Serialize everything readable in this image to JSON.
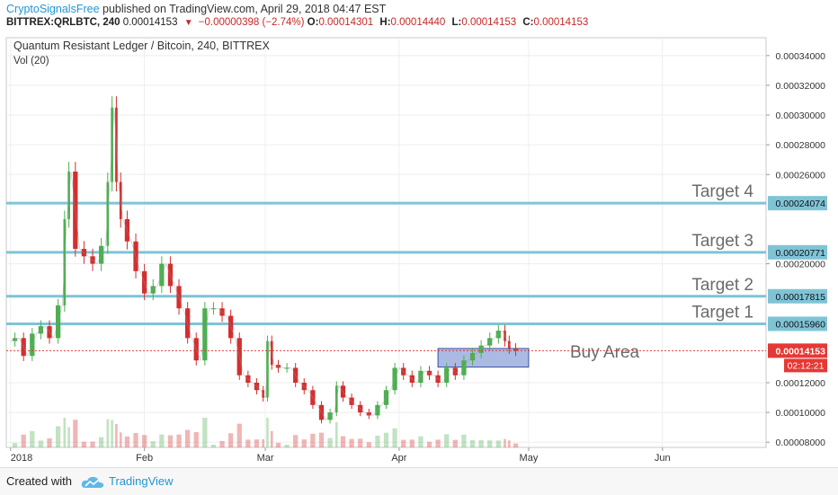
{
  "header": {
    "author": "CryptoSignalsFree",
    "published": "published on TradingView.com, April 29, 2018 04:47 EST",
    "symbol": "BITTREX:QRLBTC, 240",
    "last": "0.00014153",
    "change": "−0.00000398 (−2.74%)",
    "o_label": "O:",
    "o_value": "0.00014301",
    "h_label": "H:",
    "h_value": "0.00014440",
    "l_label": "L:",
    "l_value": "0.00014153",
    "c_label": "C:",
    "c_value": "0.00014153"
  },
  "colors": {
    "up": "#4caf50",
    "down": "#d32f2f",
    "level_line": "#7fc4d6",
    "buy_box": "#8fa3d9",
    "price_tag": "#e53935",
    "axis_text": "#333333"
  },
  "footer": {
    "created_with": "Created with",
    "brand": "TradingView"
  },
  "chart_data": {
    "type": "candlestick",
    "title": "Quantum Resistant Ledger / Bitcoin, 240, BITTREX",
    "indicator": "Vol (20)",
    "x_ticks": [
      "2018",
      "Feb",
      "Mar",
      "Apr",
      "May",
      "Jun"
    ],
    "x_tick_dates": [
      "2018-01-01",
      "2018-02-01",
      "2018-03-01",
      "2018-04-01",
      "2018-05-01",
      "2018-06-01"
    ],
    "x_range": [
      "2017-12-31",
      "2018-06-25"
    ],
    "y_ticks": [
      "0.00008000",
      "0.00010000",
      "0.00012000",
      "0.00020000",
      "0.00026000",
      "0.00028000",
      "0.00030000",
      "0.00032000",
      "0.00034000"
    ],
    "ylim": [
      7.65e-05,
      0.000352
    ],
    "series": [
      {
        "date": "2018-01-01",
        "value": 0.000148
      },
      {
        "date": "2018-01-03",
        "value": 0.00015
      },
      {
        "date": "2018-01-05",
        "value": 0.000138
      },
      {
        "date": "2018-01-07",
        "value": 0.000153
      },
      {
        "date": "2018-01-09",
        "value": 0.000158
      },
      {
        "date": "2018-01-11",
        "value": 0.00015
      },
      {
        "date": "2018-01-13",
        "value": 0.000172
      },
      {
        "date": "2018-01-14",
        "value": 0.00023
      },
      {
        "date": "2018-01-15",
        "value": 0.000262
      },
      {
        "date": "2018-01-17",
        "value": 0.00021
      },
      {
        "date": "2018-01-19",
        "value": 0.000205
      },
      {
        "date": "2018-01-21",
        "value": 0.0002
      },
      {
        "date": "2018-01-23",
        "value": 0.000212
      },
      {
        "date": "2018-01-24",
        "value": 0.000255
      },
      {
        "date": "2018-01-25",
        "value": 0.000305
      },
      {
        "date": "2018-01-26",
        "value": 0.000255
      },
      {
        "date": "2018-01-27",
        "value": 0.00023
      },
      {
        "date": "2018-01-29",
        "value": 0.000215
      },
      {
        "date": "2018-01-31",
        "value": 0.000195
      },
      {
        "date": "2018-02-02",
        "value": 0.00018
      },
      {
        "date": "2018-02-04",
        "value": 0.000185
      },
      {
        "date": "2018-02-06",
        "value": 0.0002
      },
      {
        "date": "2018-02-08",
        "value": 0.000185
      },
      {
        "date": "2018-02-10",
        "value": 0.00017
      },
      {
        "date": "2018-02-12",
        "value": 0.00015
      },
      {
        "date": "2018-02-14",
        "value": 0.000135
      },
      {
        "date": "2018-02-16",
        "value": 0.00017
      },
      {
        "date": "2018-02-18",
        "value": 0.00017
      },
      {
        "date": "2018-02-20",
        "value": 0.000165
      },
      {
        "date": "2018-02-22",
        "value": 0.00015
      },
      {
        "date": "2018-02-24",
        "value": 0.000125
      },
      {
        "date": "2018-02-26",
        "value": 0.00012
      },
      {
        "date": "2018-02-28",
        "value": 0.000115
      },
      {
        "date": "2018-03-01",
        "value": 0.00011
      },
      {
        "date": "2018-03-02",
        "value": 0.000148
      },
      {
        "date": "2018-03-03",
        "value": 0.000132
      },
      {
        "date": "2018-03-05",
        "value": 0.00013
      },
      {
        "date": "2018-03-07",
        "value": 0.00013
      },
      {
        "date": "2018-03-09",
        "value": 0.00012
      },
      {
        "date": "2018-03-11",
        "value": 0.000115
      },
      {
        "date": "2018-03-13",
        "value": 0.000105
      },
      {
        "date": "2018-03-15",
        "value": 9.5e-05
      },
      {
        "date": "2018-03-17",
        "value": 0.0001
      },
      {
        "date": "2018-03-18",
        "value": 0.000118
      },
      {
        "date": "2018-03-20",
        "value": 0.00011
      },
      {
        "date": "2018-03-22",
        "value": 0.000105
      },
      {
        "date": "2018-03-24",
        "value": 0.0001
      },
      {
        "date": "2018-03-26",
        "value": 9.8e-05
      },
      {
        "date": "2018-03-28",
        "value": 0.000105
      },
      {
        "date": "2018-03-30",
        "value": 0.000115
      },
      {
        "date": "2018-04-01",
        "value": 0.00013
      },
      {
        "date": "2018-04-03",
        "value": 0.000125
      },
      {
        "date": "2018-04-05",
        "value": 0.00012
      },
      {
        "date": "2018-04-07",
        "value": 0.000128
      },
      {
        "date": "2018-04-09",
        "value": 0.000125
      },
      {
        "date": "2018-04-11",
        "value": 0.00012
      },
      {
        "date": "2018-04-13",
        "value": 0.00013
      },
      {
        "date": "2018-04-15",
        "value": 0.000125
      },
      {
        "date": "2018-04-17",
        "value": 0.000135
      },
      {
        "date": "2018-04-19",
        "value": 0.00014
      },
      {
        "date": "2018-04-21",
        "value": 0.000145
      },
      {
        "date": "2018-04-23",
        "value": 0.00015
      },
      {
        "date": "2018-04-25",
        "value": 0.000155
      },
      {
        "date": "2018-04-26",
        "value": 0.000148
      },
      {
        "date": "2018-04-27",
        "value": 0.000143
      },
      {
        "date": "2018-04-29",
        "value": 0.0001415
      }
    ],
    "levels": [
      {
        "label": "Target 4",
        "value": 0.00024074,
        "tag": "0.00024074"
      },
      {
        "label": "Target 3",
        "value": 0.00020771,
        "tag": "0.00020771"
      },
      {
        "label": "Target 2",
        "value": 0.00017815,
        "tag": "0.00017815"
      },
      {
        "label": "Target 1",
        "value": 0.0001596,
        "tag": "0.00015960"
      }
    ],
    "buy_area": {
      "label": "Buy Area",
      "x0": "2018-04-10",
      "x1": "2018-05-01",
      "y0": 0.0001305,
      "y1": 0.000143
    },
    "last_price": {
      "value": 0.00014153,
      "tag": "0.00014153",
      "countdown": "02:12:21"
    }
  }
}
